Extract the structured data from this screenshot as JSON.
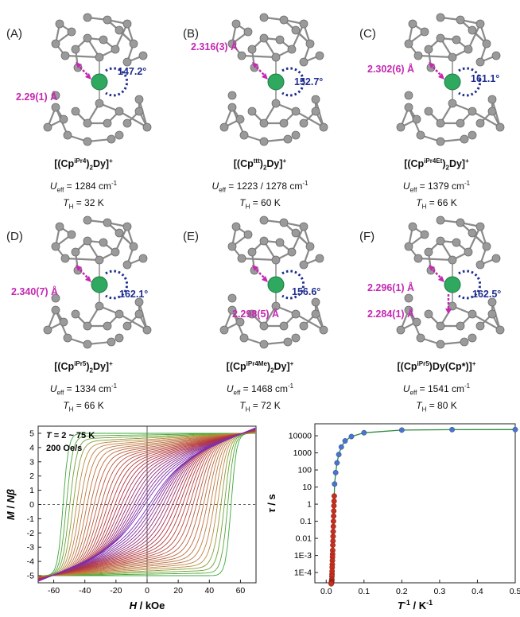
{
  "panels": [
    {
      "letter": "(A)",
      "ligand": "Cp",
      "sup": "iPr4",
      "count": "2",
      "tail": "Dy]",
      "charge": "+",
      "ueff_value": "= 1284 cm",
      "th_value": "= 32 K",
      "bonds": [
        "2.29(1) Å"
      ],
      "angle": "147.2°"
    },
    {
      "letter": "(B)",
      "ligand": "Cp",
      "sup": "ttt",
      "count": "2",
      "tail": "Dy]",
      "charge": "+",
      "ueff_value": "= 1223 / 1278 cm",
      "th_value": "= 60 K",
      "bonds": [
        "2.316(3) Å"
      ],
      "angle": "152.7°"
    },
    {
      "letter": "(C)",
      "ligand": "Cp",
      "sup": "iPr4Et",
      "count": "2",
      "tail": "Dy]",
      "charge": "+",
      "ueff_value": "= 1379 cm",
      "th_value": "= 66 K",
      "bonds": [
        "2.302(6) Å"
      ],
      "angle": "161.1°"
    },
    {
      "letter": "(D)",
      "ligand": "Cp",
      "sup": "iPr5",
      "count": "2",
      "tail": "Dy]",
      "charge": "+",
      "ueff_value": "= 1334 cm",
      "th_value": "= 66 K",
      "bonds": [
        "2.340(7) Å"
      ],
      "angle": "162.1°"
    },
    {
      "letter": "(E)",
      "ligand": "Cp",
      "sup": "iPr4Me",
      "count": "2",
      "tail": "Dy]",
      "charge": "+",
      "ueff_value": "= 1468 cm",
      "th_value": "= 72 K",
      "bonds": [
        "2.298(5) Å"
      ],
      "angle": "156.6°"
    },
    {
      "letter": "(F)",
      "ligand": "Cp",
      "sup": "iPr5",
      "count": "",
      "tail": "Dy(Cp*)]",
      "charge": "+",
      "ueff_value": "= 1541 cm",
      "th_value": "= 80 K",
      "bonds": [
        "2.296(1) Å",
        "2.284(1) Å"
      ],
      "angle": "162.5°"
    }
  ],
  "colors": {
    "dy": "#2fa860",
    "atom": "#9a9a9a",
    "bond_arrow": "#c528b2",
    "angle_arc": "#1e2d8f",
    "hyst_green": "#3aa83a",
    "hyst_red": "#b5323a",
    "hyst_purple": "#7a2fb5",
    "tau_blue": "#4a73c9",
    "tau_red": "#c43020",
    "fit_green": "#2d8a3a"
  },
  "chart_data": [
    {
      "type": "line",
      "annotations": [
        "T = 2 ~ 75 K",
        "200 Oe/s"
      ],
      "xlim": [
        -70,
        70
      ],
      "ylim": [
        -5.5,
        5.5
      ],
      "xticks": [
        -60,
        -40,
        -20,
        0,
        20,
        40,
        60
      ],
      "yticks": [
        -5,
        -4,
        -3,
        -2,
        -1,
        0,
        1,
        2,
        3,
        4,
        5
      ],
      "temperatures_K": [
        2,
        75
      ],
      "saturation": 5
    },
    {
      "type": "scatter",
      "xlim": [
        -0.03,
        0.5
      ],
      "yscale": "log",
      "xticks": [
        "0.0",
        "0.1",
        "0.2",
        "0.3",
        "0.4",
        "0.5"
      ],
      "yticks": [
        "1E-4",
        "1E-3",
        "0.01",
        "0.1",
        "1",
        "10",
        "100",
        "1000",
        "10000"
      ],
      "series": [
        {
          "x": [
            0.5,
            0.333,
            0.2,
            0.1,
            0.0667,
            0.05,
            0.04,
            0.0333,
            0.0286,
            0.025,
            0.0222
          ],
          "y": [
            23000,
            22800,
            21500,
            15000,
            9000,
            5000,
            2200,
            800,
            260,
            70,
            15
          ]
        },
        {
          "x": [
            0.0213,
            0.0208,
            0.0204,
            0.02,
            0.0196,
            0.0192,
            0.0189,
            0.0185,
            0.0182,
            0.0179,
            0.0175,
            0.0172,
            0.0169,
            0.0167,
            0.0164,
            0.0161,
            0.0159,
            0.0156,
            0.0154,
            0.0152,
            0.0149,
            0.0147,
            0.0145,
            0.0143,
            0.0141,
            0.0139,
            0.0137,
            0.0135,
            0.0133
          ],
          "y": [
            3,
            1.5,
            0.8,
            0.4,
            0.2,
            0.1,
            0.05,
            0.025,
            0.013,
            0.007,
            0.004,
            0.002,
            0.0012,
            0.0008,
            0.0005,
            0.0003,
            0.0002,
            0.00012,
            8e-05,
            6e-05,
            4e-05,
            3.5e-05,
            3e-05,
            2.8e-05,
            2.6e-05,
            2.5e-05,
            2.4e-05,
            2.3e-05,
            2.2e-05
          ]
        }
      ]
    }
  ],
  "chart_text": {
    "hyst_t": "T",
    "hyst_t_rest": " = 2 ~ 75 K",
    "hyst_rate": "200 Oe/s",
    "hyst_xlabel_var": "H",
    "hyst_xlabel_unit": " / kOe",
    "hyst_ylabel_m": "M",
    "hyst_ylabel_slash": " / ",
    "hyst_ylabel_n": "N",
    "hyst_ylabel_beta": "β",
    "tau_ylabel_var": "τ",
    "tau_ylabel_unit": " / s",
    "tau_xlabel_var": "T",
    "tau_xlabel_exp": "-1",
    "tau_xlabel_unit": " / K",
    "tau_xlabel_unit_exp": "-1"
  },
  "ueff_symbol": "U",
  "ueff_sub": "eff",
  "ueff_exp": "-1",
  "th_symbol": "T",
  "th_sub": "H"
}
